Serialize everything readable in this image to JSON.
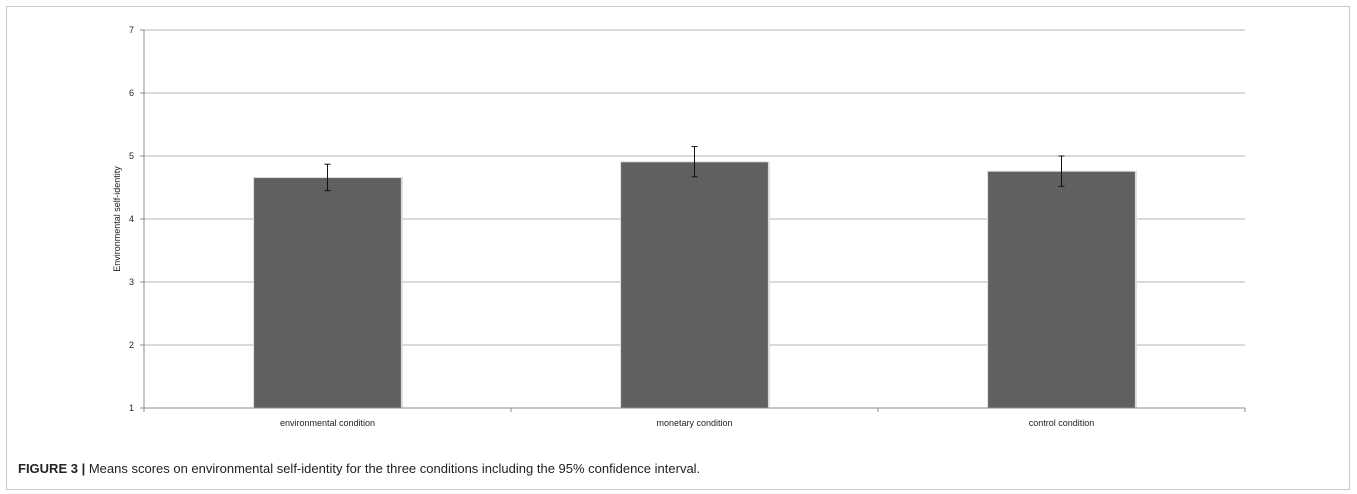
{
  "caption": {
    "label": "FIGURE 3 |",
    "text": "Means scores on environmental self-identity for the three conditions including the 95% confidence interval."
  },
  "chart_data": {
    "type": "bar",
    "categories": [
      "environmental condition",
      "monetary condition",
      "control condition"
    ],
    "values": [
      4.65,
      4.9,
      4.75
    ],
    "error_low": [
      4.45,
      4.67,
      4.52
    ],
    "error_high": [
      4.87,
      5.15,
      5.0
    ],
    "yticks": [
      1,
      2,
      3,
      4,
      5,
      6,
      7
    ],
    "title": "",
    "xlabel": "",
    "ylabel": "Environmental self-identity",
    "ylim": [
      1,
      7
    ],
    "grid": true,
    "bar_color": "#606060"
  }
}
